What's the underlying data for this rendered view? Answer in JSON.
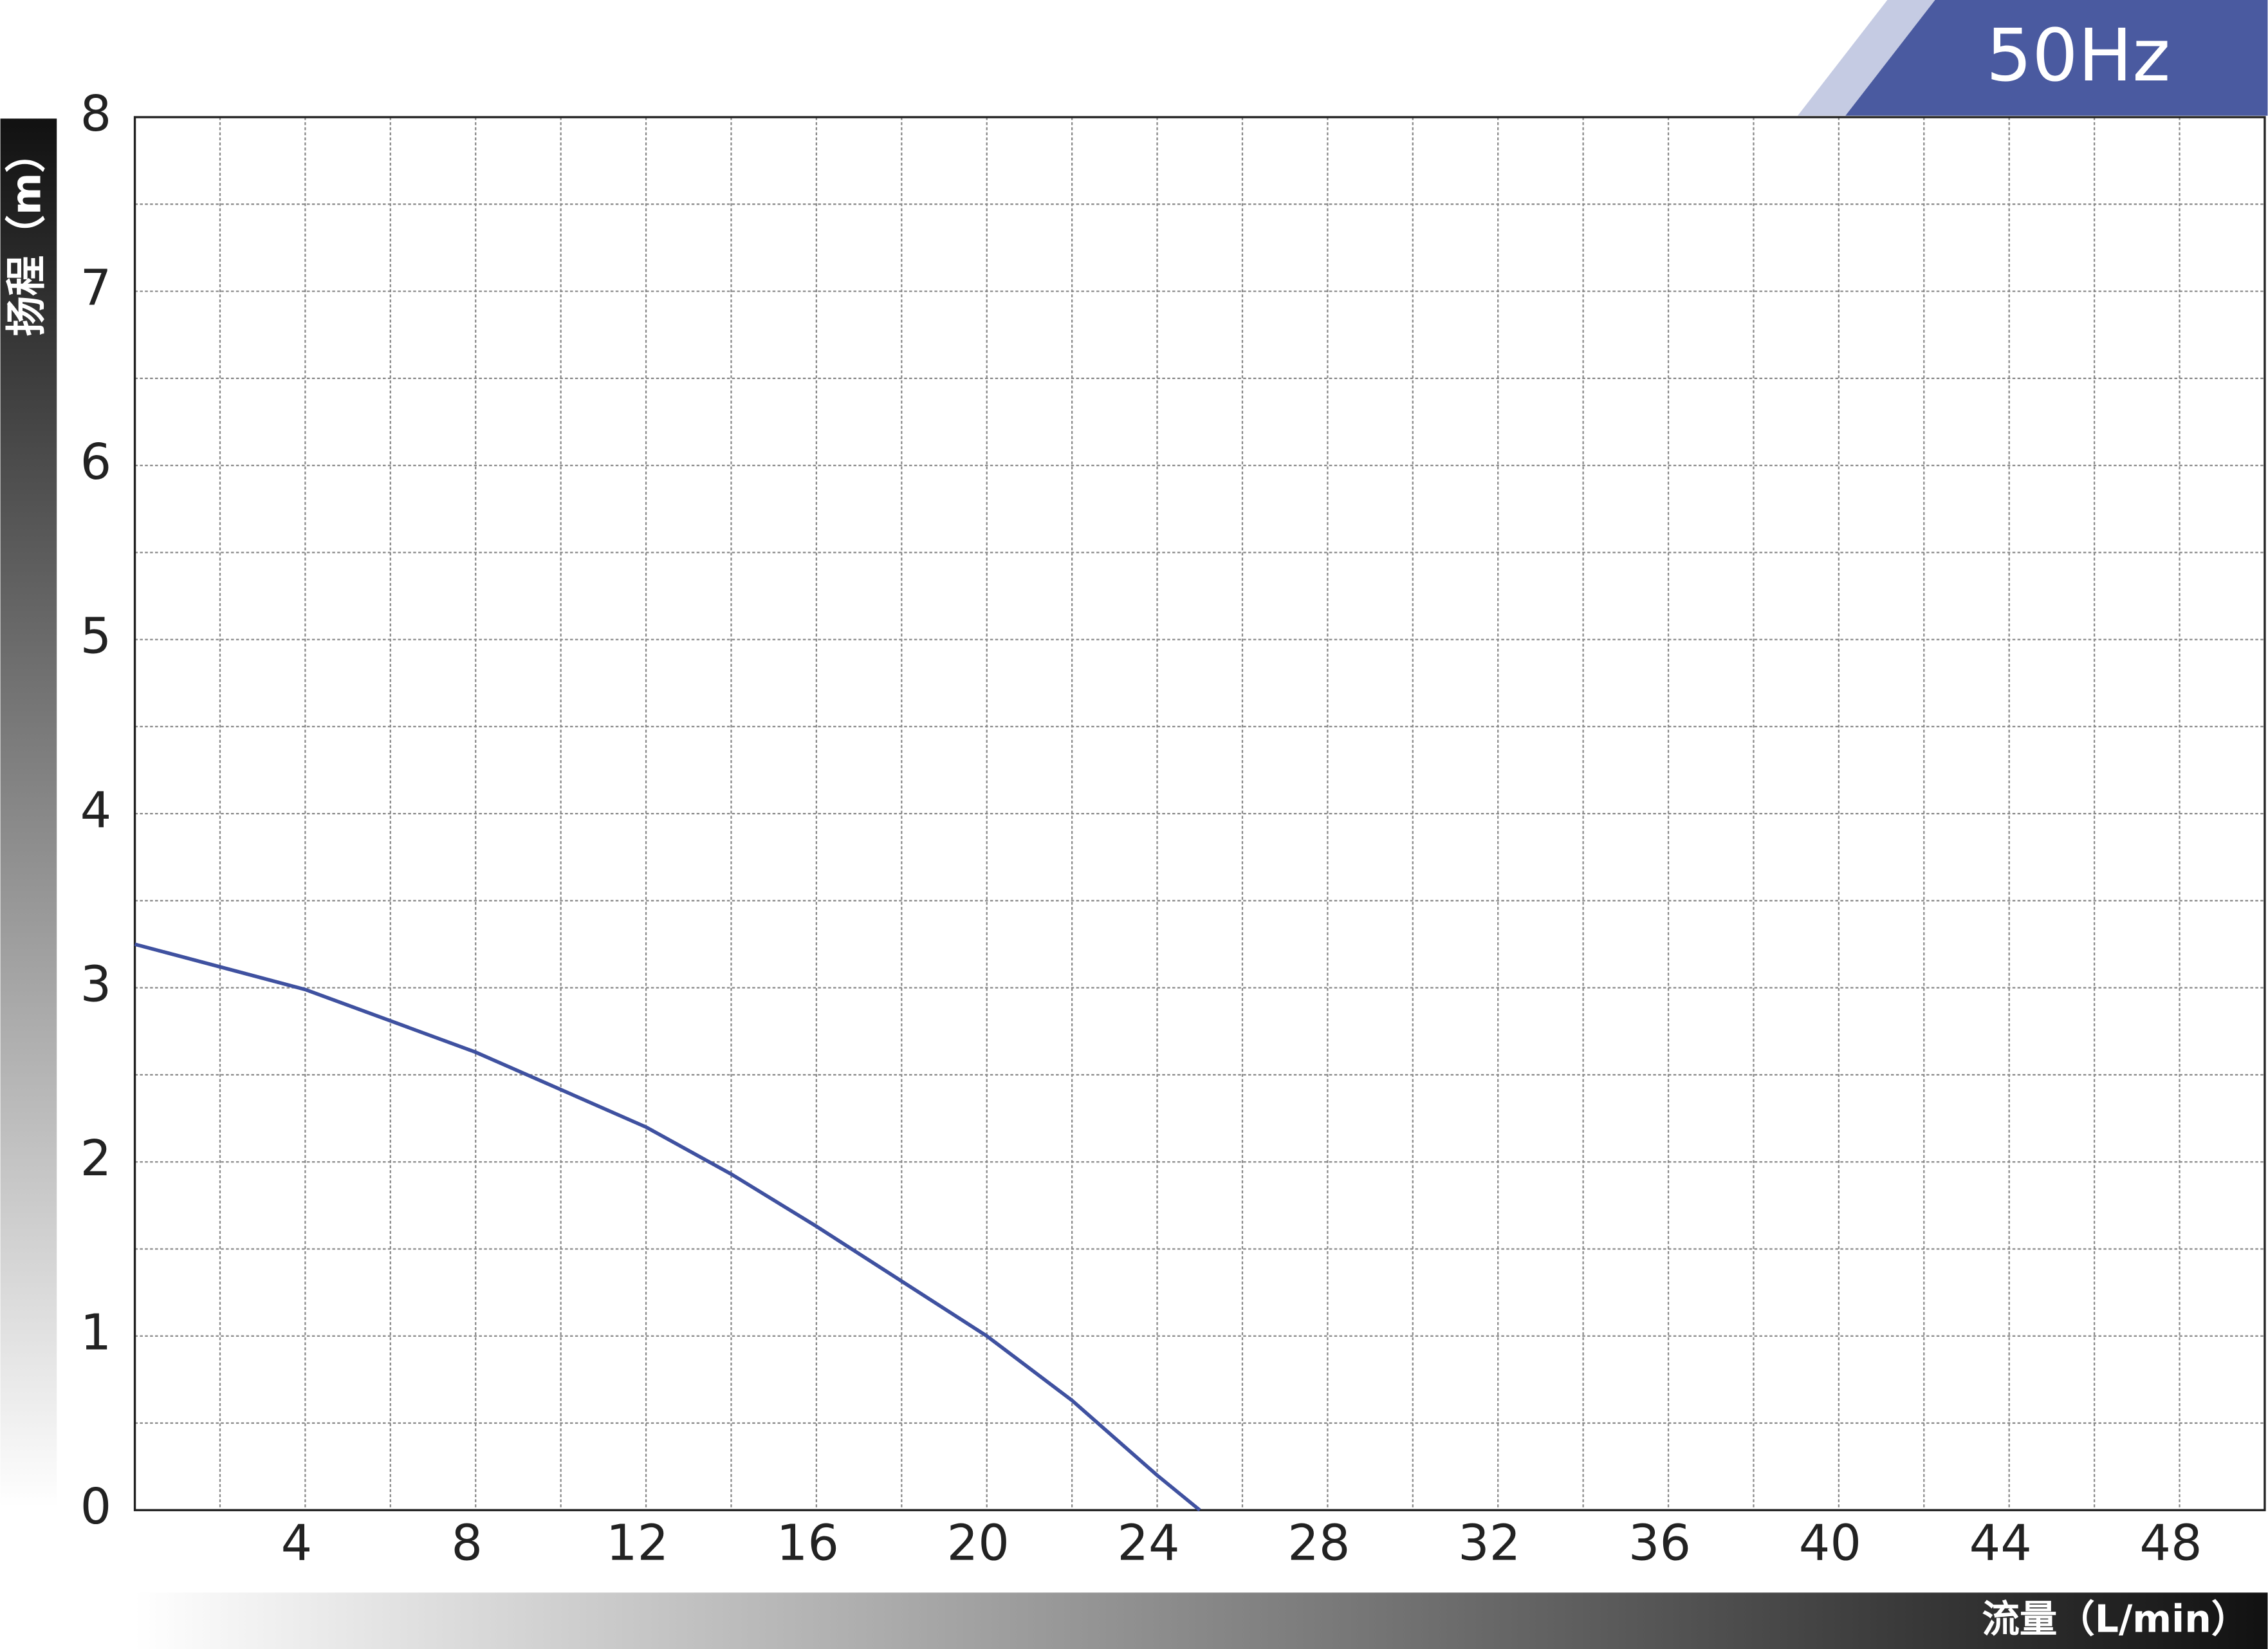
{
  "chart_data": {
    "type": "line",
    "badge": "50Hz",
    "x_label": "流量（L/min）",
    "y_label": "扬程（m）",
    "x": [
      0,
      4,
      8,
      12,
      14,
      16,
      20,
      22,
      24,
      25
    ],
    "values": [
      3.25,
      2.99,
      2.63,
      2.2,
      1.93,
      1.63,
      1.0,
      0.63,
      0.2,
      0
    ],
    "color": "#3f51a0",
    "xlim": [
      0,
      50
    ],
    "xticks": [
      4,
      8,
      12,
      16,
      20,
      24,
      28,
      32,
      36,
      40,
      44,
      48
    ],
    "ylim": [
      0,
      8
    ],
    "yticks": [
      0,
      1,
      2,
      3,
      4,
      5,
      6,
      7,
      8
    ],
    "grid": true
  }
}
